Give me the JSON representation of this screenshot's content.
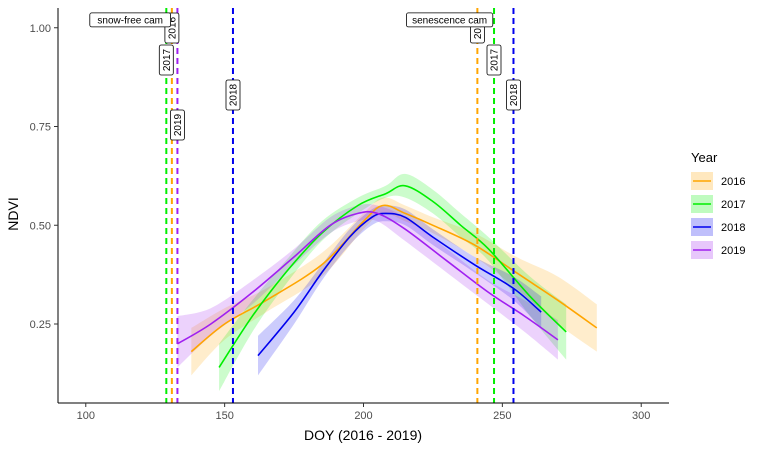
{
  "chart_data": {
    "type": "line",
    "xlabel": "DOY (2016 - 2019)",
    "ylabel": "NDVI",
    "xlim": [
      90,
      310
    ],
    "ylim": [
      0.05,
      1.05
    ],
    "x_ticks": [
      100,
      150,
      200,
      250,
      300
    ],
    "y_ticks": [
      0.25,
      0.5,
      0.75,
      1.0
    ],
    "x_tick_labels": [
      "100",
      "150",
      "200",
      "250",
      "300"
    ],
    "y_tick_labels": [
      "0.25",
      "0.50",
      "0.75",
      "1.00"
    ],
    "grid": false,
    "legend": {
      "title": "Year",
      "position": "right"
    },
    "series": [
      {
        "name": "2016",
        "color": "#FFA500",
        "x": [
          138,
          150,
          165,
          185,
          200,
          207,
          215,
          225,
          240,
          255,
          270,
          284
        ],
        "y": [
          0.18,
          0.25,
          0.31,
          0.4,
          0.51,
          0.55,
          0.53,
          0.5,
          0.45,
          0.38,
          0.31,
          0.24
        ],
        "lower": [
          0.12,
          0.21,
          0.28,
          0.37,
          0.49,
          0.53,
          0.51,
          0.48,
          0.42,
          0.34,
          0.25,
          0.18
        ],
        "upper": [
          0.24,
          0.29,
          0.34,
          0.43,
          0.53,
          0.57,
          0.55,
          0.52,
          0.48,
          0.42,
          0.37,
          0.3
        ]
      },
      {
        "name": "2017",
        "color": "#00EE00",
        "x": [
          148,
          160,
          172,
          185,
          198,
          208,
          215,
          225,
          235,
          245,
          260,
          273
        ],
        "y": [
          0.14,
          0.27,
          0.38,
          0.48,
          0.55,
          0.58,
          0.6,
          0.56,
          0.5,
          0.44,
          0.32,
          0.23
        ],
        "lower": [
          0.08,
          0.23,
          0.35,
          0.46,
          0.53,
          0.57,
          0.57,
          0.53,
          0.47,
          0.41,
          0.27,
          0.16
        ],
        "upper": [
          0.2,
          0.31,
          0.41,
          0.51,
          0.57,
          0.6,
          0.63,
          0.59,
          0.53,
          0.47,
          0.37,
          0.3
        ]
      },
      {
        "name": "2018",
        "color": "#0000EE",
        "x": [
          162,
          175,
          185,
          195,
          203,
          208,
          215,
          225,
          240,
          254,
          264
        ],
        "y": [
          0.17,
          0.28,
          0.38,
          0.47,
          0.52,
          0.53,
          0.52,
          0.47,
          0.4,
          0.34,
          0.28
        ],
        "lower": [
          0.12,
          0.25,
          0.36,
          0.45,
          0.5,
          0.51,
          0.5,
          0.45,
          0.38,
          0.31,
          0.24
        ],
        "upper": [
          0.22,
          0.31,
          0.4,
          0.49,
          0.54,
          0.55,
          0.54,
          0.49,
          0.42,
          0.37,
          0.32
        ]
      },
      {
        "name": "2019",
        "color": "#A020F0",
        "x": [
          133,
          145,
          160,
          175,
          188,
          198,
          205,
          215,
          230,
          245,
          258,
          270
        ],
        "y": [
          0.2,
          0.25,
          0.33,
          0.42,
          0.5,
          0.53,
          0.53,
          0.49,
          0.41,
          0.33,
          0.27,
          0.21
        ],
        "lower": [
          0.14,
          0.22,
          0.3,
          0.4,
          0.48,
          0.51,
          0.51,
          0.46,
          0.38,
          0.3,
          0.23,
          0.16
        ],
        "upper": [
          0.27,
          0.29,
          0.36,
          0.44,
          0.52,
          0.55,
          0.55,
          0.52,
          0.44,
          0.36,
          0.31,
          0.26
        ]
      }
    ],
    "vlines": [
      {
        "x": 129,
        "color": "#00EE00",
        "label": "2017"
      },
      {
        "x": 131,
        "color": "#FFA500",
        "label": "2016"
      },
      {
        "x": 133,
        "color": "#A020F0",
        "label": "2019"
      },
      {
        "x": 153,
        "color": "#0000EE",
        "label": "2018"
      },
      {
        "x": 241,
        "color": "#FFA500",
        "label": "2016"
      },
      {
        "x": 247,
        "color": "#00EE00",
        "label": "2017"
      },
      {
        "x": 254,
        "color": "#0000EE",
        "label": "2018"
      }
    ],
    "annotations": [
      {
        "text": "snow-free cam",
        "x": 116,
        "y": 1.02
      },
      {
        "text": "senescence cam",
        "x": 231,
        "y": 1.02
      }
    ]
  }
}
